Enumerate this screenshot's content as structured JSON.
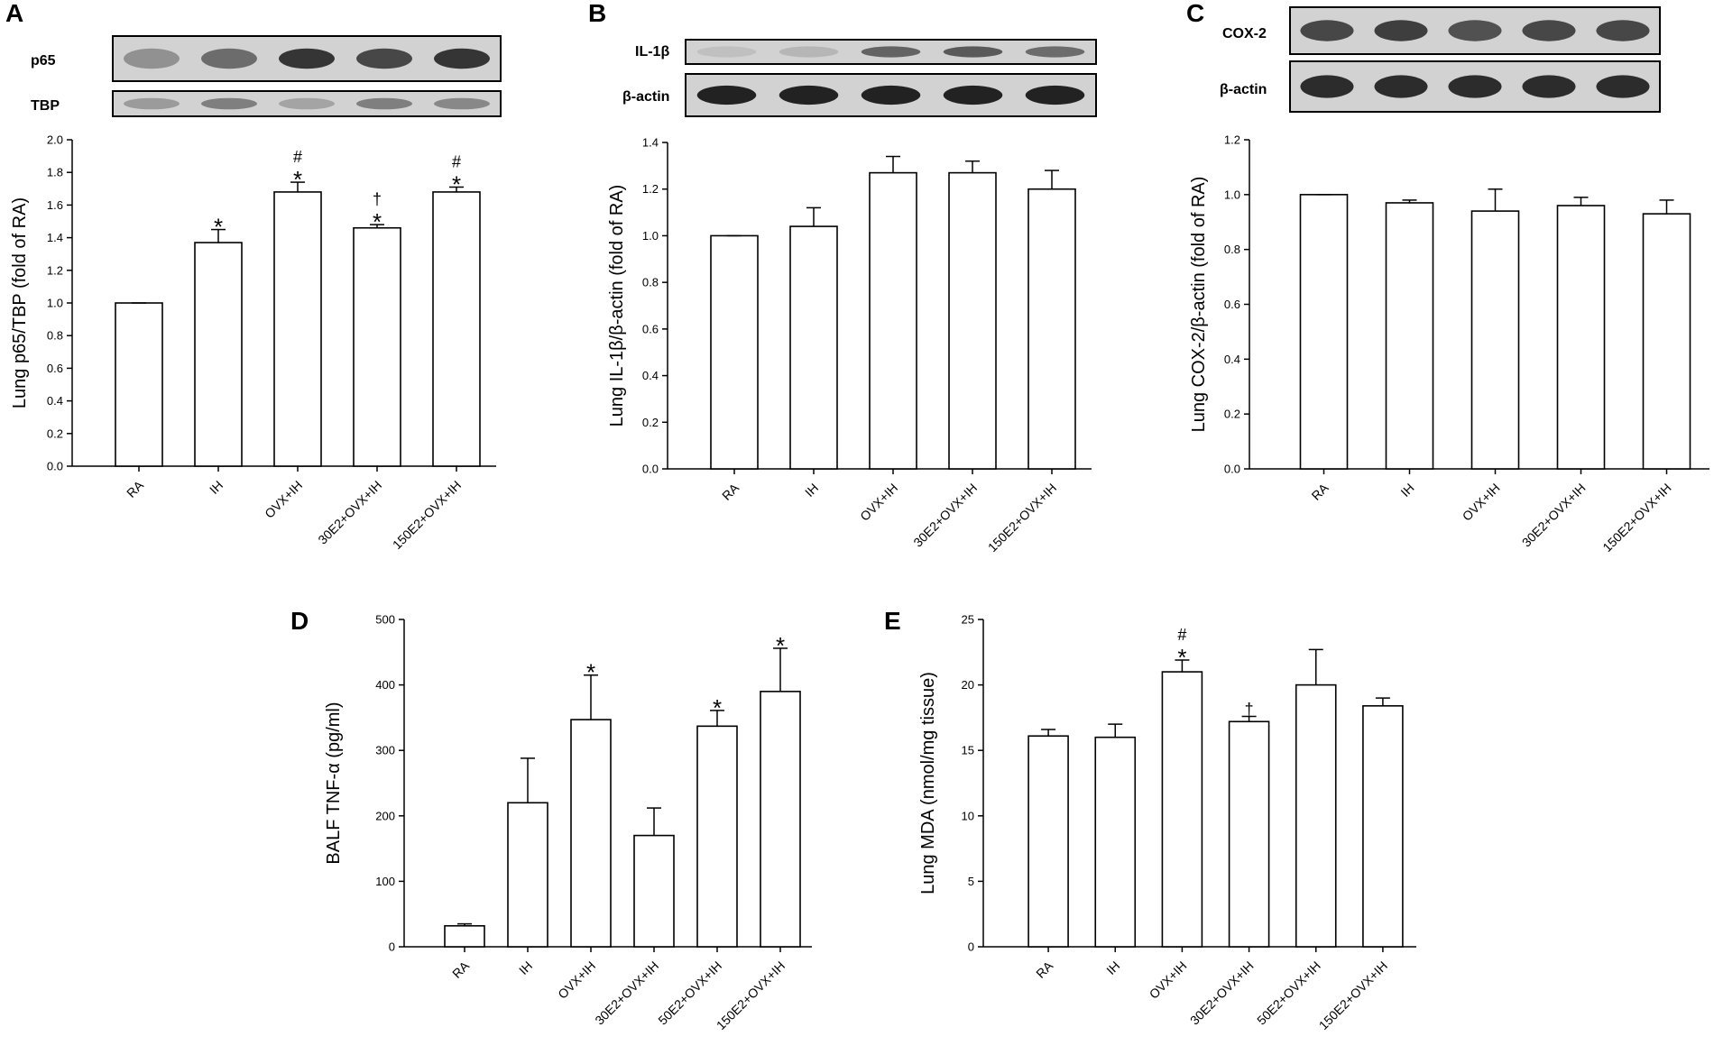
{
  "panels": {
    "A": {
      "letter": "A",
      "blots": [
        {
          "label": "p65",
          "intensity": [
            0.35,
            0.55,
            0.85,
            0.75,
            0.85
          ]
        },
        {
          "label": "TBP",
          "intensity": [
            0.3,
            0.45,
            0.25,
            0.45,
            0.4
          ]
        }
      ]
    },
    "B": {
      "letter": "B",
      "blots": [
        {
          "label": "IL-1β",
          "intensity": [
            0.1,
            0.15,
            0.6,
            0.65,
            0.55
          ]
        },
        {
          "label": "β-actin",
          "intensity": [
            0.95,
            0.95,
            0.95,
            0.95,
            0.95
          ]
        }
      ]
    },
    "C": {
      "letter": "C",
      "blots": [
        {
          "label": "COX-2",
          "intensity": [
            0.75,
            0.8,
            0.7,
            0.75,
            0.75
          ]
        },
        {
          "label": "β-actin",
          "intensity": [
            0.9,
            0.9,
            0.9,
            0.9,
            0.9
          ]
        }
      ]
    },
    "D": {
      "letter": "D"
    },
    "E": {
      "letter": "E"
    }
  },
  "chart_data": [
    {
      "id": "A",
      "type": "bar",
      "title": "",
      "categories": [
        "RA",
        "IH",
        "OVX+IH",
        "30E2+OVX+IH",
        "150E2+OVX+IH"
      ],
      "values": [
        1.0,
        1.37,
        1.68,
        1.46,
        1.68
      ],
      "errors": [
        0,
        0.08,
        0.06,
        0.02,
        0.03
      ],
      "annotations": [
        [],
        [
          "*"
        ],
        [
          "*",
          "#"
        ],
        [
          "*",
          "†"
        ],
        [
          "*",
          "#"
        ]
      ],
      "xlabel": "",
      "ylabel": "Lung p65/TBP (fold of RA)",
      "ylim": [
        0,
        2.0
      ],
      "yticks": [
        "0.0",
        "0.2",
        "0.4",
        "0.6",
        "0.8",
        "1.0",
        "1.2",
        "1.4",
        "1.6",
        "1.8",
        "2.0"
      ],
      "ytick_values": [
        0,
        0.2,
        0.4,
        0.6,
        0.8,
        1.0,
        1.2,
        1.4,
        1.6,
        1.8,
        2.0
      ],
      "grid": false,
      "legend": "none"
    },
    {
      "id": "B",
      "type": "bar",
      "title": "",
      "categories": [
        "RA",
        "IH",
        "OVX+IH",
        "30E2+OVX+IH",
        "150E2+OVX+IH"
      ],
      "values": [
        1.0,
        1.04,
        1.27,
        1.27,
        1.2
      ],
      "errors": [
        0,
        0.08,
        0.07,
        0.05,
        0.08
      ],
      "annotations": [
        [],
        [],
        [],
        [],
        []
      ],
      "xlabel": "",
      "ylabel": "Lung IL-1β/β-actin (fold of RA)",
      "ylim": [
        0,
        1.4
      ],
      "yticks": [
        "0.0",
        "0.2",
        "0.4",
        "0.6",
        "0.8",
        "1.0",
        "1.2",
        "1.4"
      ],
      "ytick_values": [
        0,
        0.2,
        0.4,
        0.6,
        0.8,
        1.0,
        1.2,
        1.4
      ],
      "grid": false,
      "legend": "none"
    },
    {
      "id": "C",
      "type": "bar",
      "title": "",
      "categories": [
        "RA",
        "IH",
        "OVX+IH",
        "30E2+OVX+IH",
        "150E2+OVX+IH"
      ],
      "values": [
        1.0,
        0.97,
        0.94,
        0.96,
        0.93
      ],
      "errors": [
        0,
        0.01,
        0.08,
        0.03,
        0.05
      ],
      "annotations": [
        [],
        [],
        [],
        [],
        []
      ],
      "xlabel": "",
      "ylabel": "Lung COX-2/β-actin (fold of RA)",
      "ylim": [
        0,
        1.2
      ],
      "yticks": [
        "0.0",
        "0.2",
        "0.4",
        "0.6",
        "0.8",
        "1.0",
        "1.2"
      ],
      "ytick_values": [
        0,
        0.2,
        0.4,
        0.6,
        0.8,
        1.0,
        1.2
      ],
      "grid": false,
      "legend": "none"
    },
    {
      "id": "D",
      "type": "bar",
      "title": "",
      "categories": [
        "RA",
        "IH",
        "OVX+IH",
        "30E2+OVX+IH",
        "50E2+OVX+IH",
        "150E2+OVX+IH"
      ],
      "values": [
        32,
        220,
        347,
        170,
        337,
        390
      ],
      "errors": [
        3,
        68,
        68,
        42,
        24,
        66
      ],
      "annotations": [
        [],
        [],
        [
          "*"
        ],
        [],
        [
          "*"
        ],
        [
          "*"
        ]
      ],
      "xlabel": "",
      "ylabel": "BALF TNF-α (pg/ml)",
      "ylim": [
        0,
        500
      ],
      "yticks": [
        "0",
        "100",
        "200",
        "300",
        "400",
        "500"
      ],
      "ytick_values": [
        0,
        100,
        200,
        300,
        400,
        500
      ],
      "grid": false,
      "legend": "none"
    },
    {
      "id": "E",
      "type": "bar",
      "title": "",
      "categories": [
        "RA",
        "IH",
        "OVX+IH",
        "30E2+OVX+IH",
        "50E2+OVX+IH",
        "150E2+OVX+IH"
      ],
      "values": [
        16.1,
        16.0,
        21.0,
        17.2,
        20.0,
        18.4
      ],
      "errors": [
        0.5,
        1.0,
        0.9,
        0.4,
        2.7,
        0.6
      ],
      "annotations": [
        [],
        [],
        [
          "*",
          "#"
        ],
        [
          "†"
        ],
        [],
        []
      ],
      "xlabel": "",
      "ylabel": "Lung MDA (nmol/mg tissue)",
      "ylim": [
        0,
        25
      ],
      "yticks": [
        "0",
        "5",
        "10",
        "15",
        "20",
        "25"
      ],
      "ytick_values": [
        0,
        5,
        10,
        15,
        20,
        25
      ],
      "grid": false,
      "legend": "none"
    }
  ]
}
